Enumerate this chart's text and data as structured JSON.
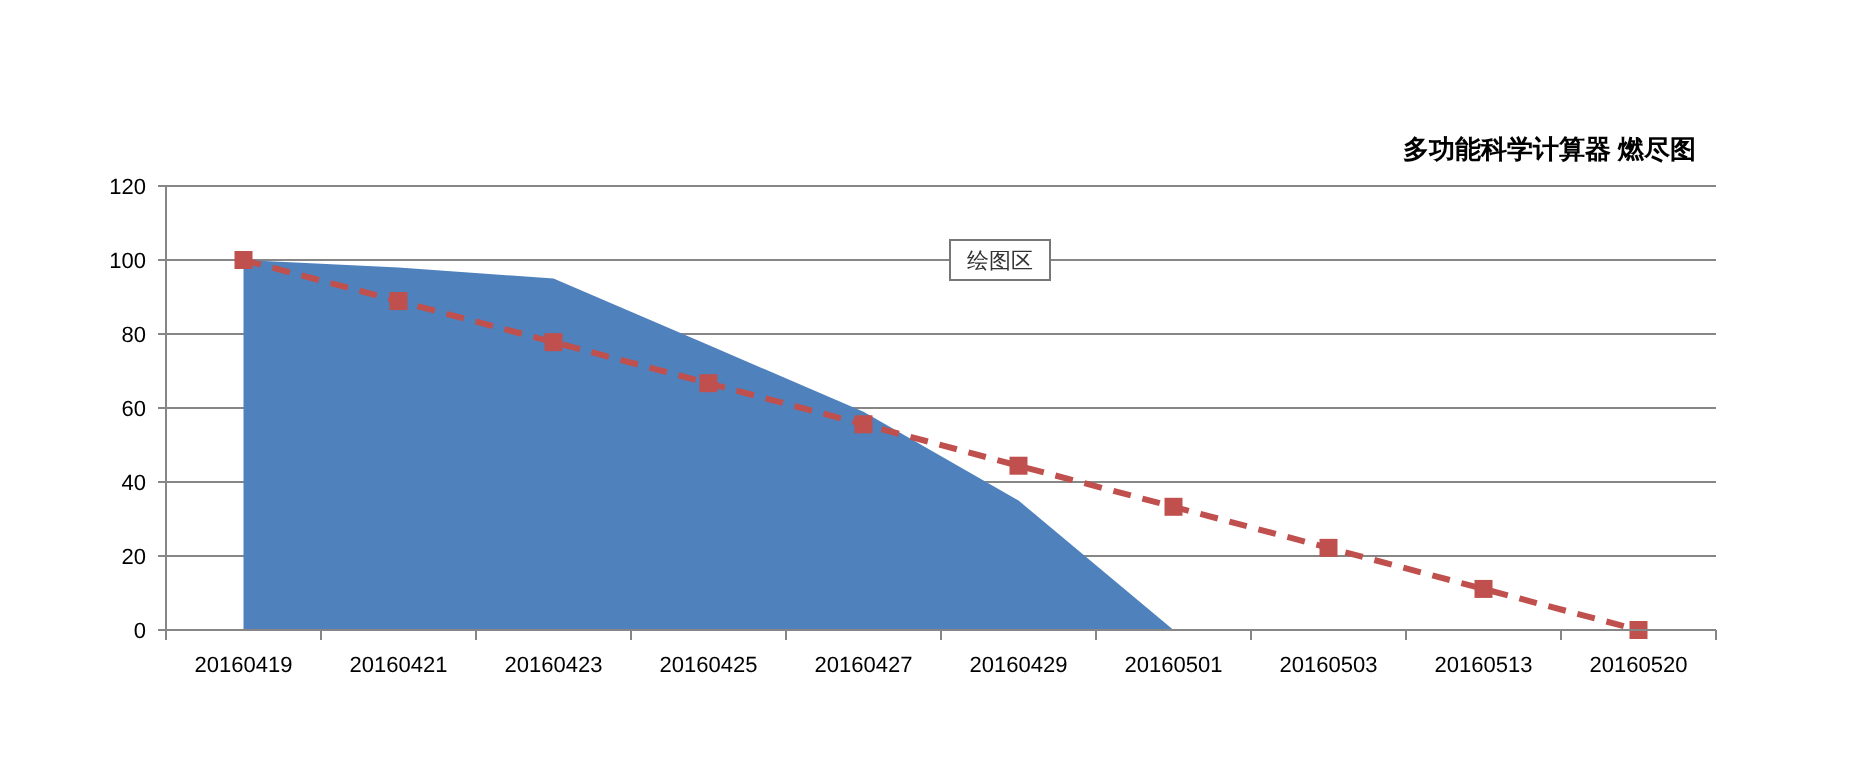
{
  "chart_data": {
    "type": "area",
    "title": "多功能科学计算器 燃尽图",
    "categories": [
      "20160419",
      "20160421",
      "20160423",
      "20160425",
      "20160427",
      "20160429",
      "20160501",
      "20160503",
      "20160513",
      "20160520"
    ],
    "series": [
      {
        "color": "#4f81bd",
        "values": [
          100,
          98,
          95,
          77,
          59,
          35,
          0,
          null,
          null,
          null
        ]
      },
      {
        "type": "line",
        "color": "#c0504d",
        "marker": "square",
        "line_style": "dashed",
        "values": [
          100,
          88.9,
          77.8,
          66.7,
          55.6,
          44.4,
          33.3,
          22.2,
          11.1,
          0
        ]
      }
    ],
    "ylim": [
      0,
      120
    ],
    "yticks": [
      0,
      20,
      40,
      60,
      80,
      100,
      120
    ],
    "grid": "y",
    "annotations": [
      "绘图区"
    ]
  }
}
